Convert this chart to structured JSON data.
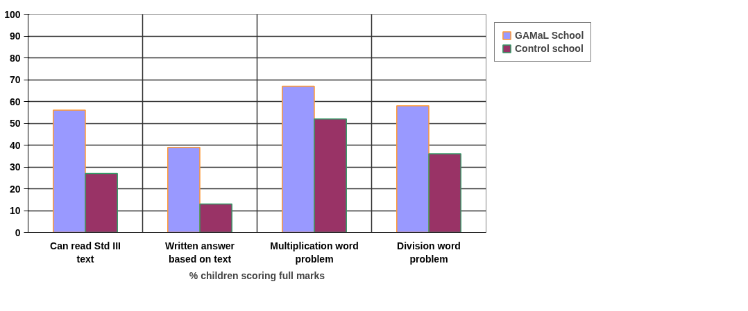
{
  "chart_data": {
    "type": "bar",
    "xlabel": "% children scoring full marks",
    "categories": [
      "Can read Std III text",
      "Written answer based on text",
      "Multiplication word problem",
      "Division word problem"
    ],
    "series": [
      {
        "name": "GAMaL School",
        "color": "#9999ff",
        "values": [
          56,
          39,
          67,
          58
        ]
      },
      {
        "name": "Control school",
        "color": "#993366",
        "values": [
          27,
          13,
          52,
          36
        ]
      }
    ],
    "ylim": [
      0,
      100
    ],
    "yticks": [
      0,
      10,
      20,
      30,
      40,
      50,
      60,
      70,
      80,
      90,
      100
    ],
    "grid": true,
    "legend": "right"
  }
}
